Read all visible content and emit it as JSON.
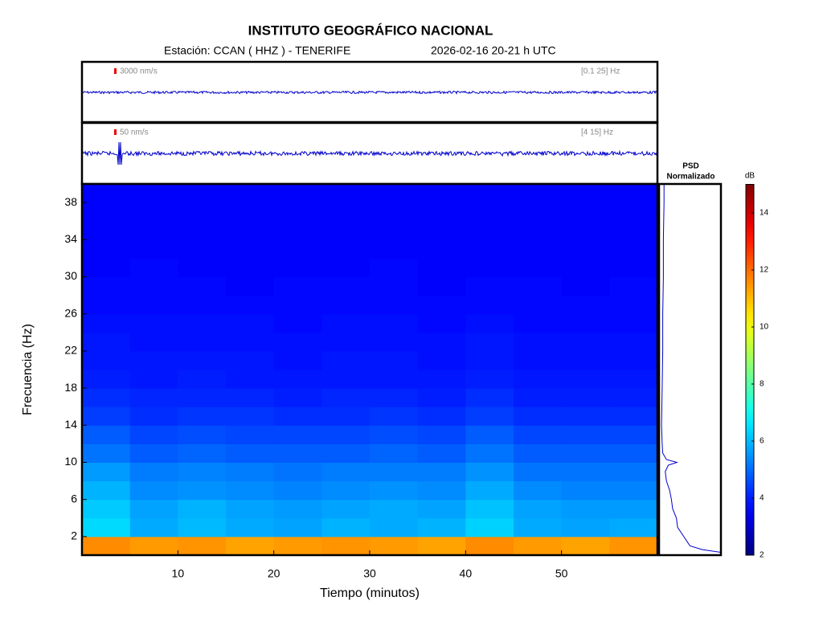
{
  "title": "INSTITUTO GEOGRÁFICO NACIONAL",
  "subtitle_station": "Estación:  CCAN ( HHZ ) - TENERIFE",
  "subtitle_date": "2026-02-16  20-21 h UTC",
  "chart_data": [
    {
      "type": "trace",
      "scale_label": "3000 nm/s",
      "band_label": "[0.1 25] Hz",
      "color": "#0000cc"
    },
    {
      "type": "trace",
      "scale_label": "50 nm/s",
      "band_label": "[4 15] Hz",
      "color": "#0000cc"
    },
    {
      "type": "heatmap",
      "x_label": "Tiempo (minutos)",
      "y_label": "Frecuencia (Hz)",
      "colormap": "jet",
      "x": [
        2.5,
        7.5,
        12.5,
        17.5,
        22.5,
        27.5,
        32.5,
        37.5,
        42.5,
        47.5,
        52.5,
        57.5
      ],
      "y": [
        1,
        3,
        5,
        7,
        9,
        11,
        13,
        15,
        17,
        19,
        21,
        23,
        25,
        27,
        29,
        31,
        33,
        35,
        37,
        39
      ],
      "values": [
        [
          11.6,
          11.4,
          11.5,
          11.3,
          11.4,
          11.5,
          11.4,
          11.3,
          11.6,
          11.4,
          11.3,
          11.5
        ],
        [
          6.4,
          5.8,
          6.0,
          5.8,
          5.7,
          5.9,
          5.8,
          5.9,
          6.3,
          5.8,
          5.7,
          5.8
        ],
        [
          6.2,
          5.7,
          5.9,
          5.7,
          5.6,
          5.7,
          5.8,
          5.7,
          6.1,
          5.7,
          5.6,
          5.6
        ],
        [
          5.9,
          5.4,
          5.5,
          5.4,
          5.3,
          5.4,
          5.5,
          5.4,
          5.8,
          5.4,
          5.3,
          5.3
        ],
        [
          5.6,
          5.2,
          5.3,
          5.2,
          5.1,
          5.2,
          5.2,
          5.2,
          5.5,
          5.1,
          5.1,
          5.1
        ],
        [
          5.1,
          4.8,
          4.9,
          4.8,
          4.8,
          4.8,
          4.9,
          4.8,
          5.1,
          4.8,
          4.8,
          4.8
        ],
        [
          4.8,
          4.5,
          4.6,
          4.5,
          4.5,
          4.5,
          4.6,
          4.5,
          4.8,
          4.5,
          4.5,
          4.5
        ],
        [
          4.4,
          4.2,
          4.3,
          4.3,
          4.2,
          4.2,
          4.3,
          4.2,
          4.4,
          4.2,
          4.2,
          4.2
        ],
        [
          4.2,
          4.1,
          4.1,
          4.1,
          4.0,
          4.1,
          4.1,
          4.0,
          4.2,
          4.0,
          4.0,
          4.0
        ],
        [
          4.0,
          3.9,
          4.0,
          3.9,
          3.9,
          3.9,
          3.9,
          3.9,
          4.0,
          3.9,
          3.9,
          3.9
        ],
        [
          3.9,
          3.9,
          3.9,
          3.9,
          3.8,
          3.9,
          3.9,
          3.8,
          3.9,
          3.8,
          3.8,
          3.8
        ],
        [
          3.9,
          3.8,
          3.8,
          3.8,
          3.8,
          3.8,
          3.8,
          3.8,
          3.9,
          3.8,
          3.8,
          3.8
        ],
        [
          3.8,
          3.8,
          3.8,
          3.8,
          3.7,
          3.8,
          3.8,
          3.7,
          3.8,
          3.7,
          3.7,
          3.7
        ],
        [
          3.7,
          3.7,
          3.7,
          3.7,
          3.7,
          3.7,
          3.7,
          3.7,
          3.7,
          3.7,
          3.7,
          3.7
        ],
        [
          3.7,
          3.7,
          3.7,
          3.6,
          3.7,
          3.7,
          3.7,
          3.6,
          3.7,
          3.7,
          3.6,
          3.7
        ],
        [
          3.6,
          3.7,
          3.6,
          3.6,
          3.6,
          3.6,
          3.7,
          3.6,
          3.6,
          3.6,
          3.6,
          3.6
        ],
        [
          3.6,
          3.6,
          3.6,
          3.6,
          3.6,
          3.6,
          3.6,
          3.6,
          3.6,
          3.6,
          3.6,
          3.6
        ],
        [
          3.6,
          3.6,
          3.6,
          3.6,
          3.6,
          3.6,
          3.6,
          3.6,
          3.6,
          3.6,
          3.6,
          3.6
        ],
        [
          3.6,
          3.6,
          3.6,
          3.6,
          3.6,
          3.6,
          3.6,
          3.6,
          3.6,
          3.6,
          3.6,
          3.6
        ],
        [
          3.6,
          3.6,
          3.6,
          3.6,
          3.6,
          3.6,
          3.6,
          3.6,
          3.6,
          3.6,
          3.6,
          3.6
        ]
      ],
      "xlim": [
        0,
        60
      ],
      "ylim": [
        0,
        40
      ],
      "xticks": [
        10,
        20,
        30,
        40,
        50
      ],
      "yticks": [
        2,
        6,
        10,
        14,
        18,
        22,
        26,
        30,
        34,
        38
      ]
    },
    {
      "type": "line",
      "title_lines": [
        "PSD",
        "Normalizado"
      ],
      "color": "#0000cc",
      "y": [
        0.3,
        0.6,
        1,
        1.5,
        2,
        3,
        4,
        5,
        6,
        7,
        8,
        9,
        9.7,
        10,
        10.3,
        11,
        12,
        14,
        18,
        22,
        26,
        30,
        34,
        38,
        40
      ],
      "values": [
        1,
        0.7,
        0.5,
        0.45,
        0.4,
        0.3,
        0.28,
        0.22,
        0.2,
        0.17,
        0.12,
        0.1,
        0.15,
        0.29,
        0.12,
        0.06,
        0.05,
        0.04,
        0.05,
        0.06,
        0.06,
        0.07,
        0.07,
        0.08,
        0.08
      ],
      "xlim": [
        0,
        1
      ],
      "ylim": [
        0,
        40
      ]
    },
    {
      "type": "colorbar",
      "label": "dB",
      "colormap": "jet",
      "zlim": [
        2,
        15
      ],
      "zticks": [
        2,
        4,
        6,
        8,
        10,
        12,
        14
      ]
    }
  ]
}
